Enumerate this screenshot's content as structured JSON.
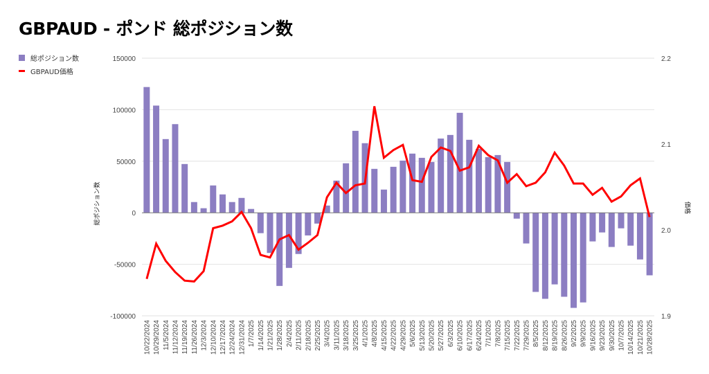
{
  "title": "GBPAUD - ポンド 総ポジション数",
  "chart_data": {
    "type": "bar+line",
    "title": "GBPAUD - ポンド 総ポジション数",
    "legend_position": "top-left",
    "grid": true,
    "colors": {
      "bar": "#8c7ec2",
      "line": "#ff0000"
    },
    "ylabel_left": "総ポジション数",
    "ylabel_right": "価格",
    "ylim_left": [
      -100000,
      150000
    ],
    "ylim_right": [
      1.9,
      2.2
    ],
    "yticks_left": [
      "150000",
      "100000",
      "50000",
      "0",
      "-50000",
      "-100000"
    ],
    "yticks_left_values": [
      150000,
      100000,
      50000,
      0,
      -50000,
      -100000
    ],
    "yticks_right": [
      "2.2",
      "2.1",
      "2.0",
      "1.9"
    ],
    "yticks_right_values": [
      2.2,
      2.1,
      2.0,
      1.9
    ],
    "categories": [
      "10/22/2024",
      "10/29/2024",
      "11/5/2024",
      "11/12/2024",
      "11/19/2024",
      "11/26/2024",
      "12/3/2024",
      "12/10/2024",
      "12/17/2024",
      "12/24/2024",
      "12/31/2024",
      "1/7/2025",
      "1/14/2025",
      "1/21/2025",
      "1/28/2025",
      "2/4/2025",
      "2/11/2025",
      "2/18/2025",
      "2/25/2025",
      "3/4/2025",
      "3/11/2025",
      "3/18/2025",
      "3/25/2025",
      "4/1/2025",
      "4/8/2025",
      "4/15/2025",
      "4/22/2025",
      "4/29/2025",
      "5/6/2025",
      "5/13/2025",
      "5/20/2025",
      "5/27/2025",
      "6/3/2025",
      "6/10/2025",
      "6/17/2025",
      "6/24/2025",
      "7/1/2025",
      "7/8/2025",
      "7/15/2025",
      "7/22/2025",
      "7/29/2025",
      "8/5/2025",
      "8/12/2025",
      "8/19/2025",
      "8/26/2025",
      "9/2/2025",
      "9/9/2025",
      "9/16/2025",
      "9/23/2025",
      "9/30/2025",
      "10/7/2025",
      "10/14/2025",
      "10/21/2025",
      "10/28/2025"
    ],
    "series": [
      {
        "name": "総ポジション数",
        "type": "bar",
        "axis": "left",
        "values": [
          122000,
          104000,
          71500,
          86000,
          47300,
          10400,
          4400,
          26500,
          17800,
          10400,
          14400,
          3700,
          -19800,
          -39000,
          -71000,
          -53500,
          -40000,
          -22000,
          -10500,
          7000,
          31200,
          48000,
          79500,
          67500,
          42600,
          22500,
          44600,
          50600,
          57400,
          53300,
          49300,
          72000,
          75500,
          97000,
          70800,
          62000,
          54000,
          56000,
          49300,
          -5700,
          -29800,
          -76800,
          -83500,
          -69500,
          -81500,
          -92300,
          -87000,
          -27800,
          -19100,
          -33200,
          -15100,
          -31900,
          -45300,
          -60700
        ]
      },
      {
        "name": "GBPAUD価格",
        "type": "line",
        "axis": "right",
        "values": [
          1.943,
          1.984,
          1.964,
          1.951,
          1.941,
          1.94,
          1.952,
          2.002,
          2.005,
          2.01,
          2.021,
          2.002,
          1.971,
          1.968,
          1.989,
          1.994,
          1.977,
          1.985,
          1.994,
          2.038,
          2.055,
          2.043,
          2.052,
          2.054,
          2.144,
          2.084,
          2.093,
          2.099,
          2.058,
          2.056,
          2.085,
          2.096,
          2.092,
          2.069,
          2.073,
          2.098,
          2.087,
          2.081,
          2.055,
          2.065,
          2.051,
          2.055,
          2.067,
          2.09,
          2.075,
          2.054,
          2.054,
          2.041,
          2.049,
          2.033,
          2.039,
          2.052,
          2.06,
          2.015
        ]
      }
    ]
  }
}
